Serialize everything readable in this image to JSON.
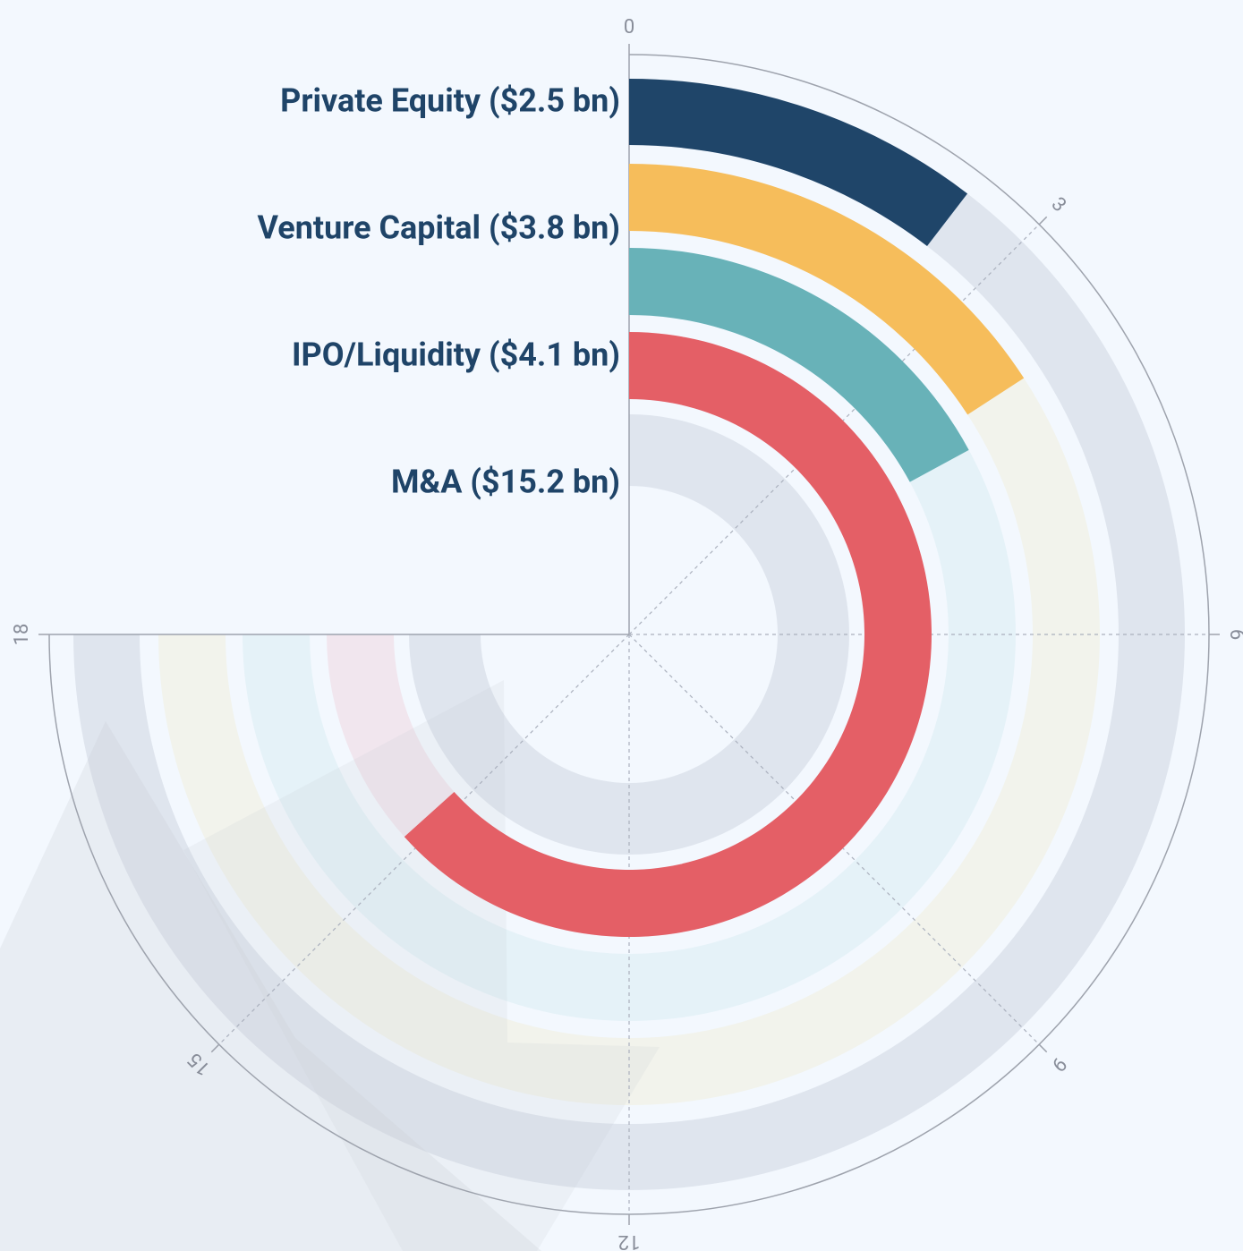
{
  "chart_data": {
    "type": "radialbar",
    "categories": [
      "Private Equity ($2.5 bn)",
      "Venture Capital ($3.8 bn)",
      "IPO/Liquidity ($4.1 bn)",
      "M&A ($15.2 bn)"
    ],
    "values": [
      2.5,
      3.8,
      4.1,
      15.2
    ],
    "colors": [
      "#1f4569",
      "#f6bd5b",
      "#68b2b8",
      "#e45f66"
    ],
    "track_colors": [
      "#dfe5ee",
      "#f2f3ec",
      "#e5f2f8",
      "#f1e6ee"
    ],
    "xlim": [
      0,
      18
    ],
    "xticks": [
      0,
      3,
      6,
      9,
      12,
      15,
      18
    ],
    "grid": true
  }
}
